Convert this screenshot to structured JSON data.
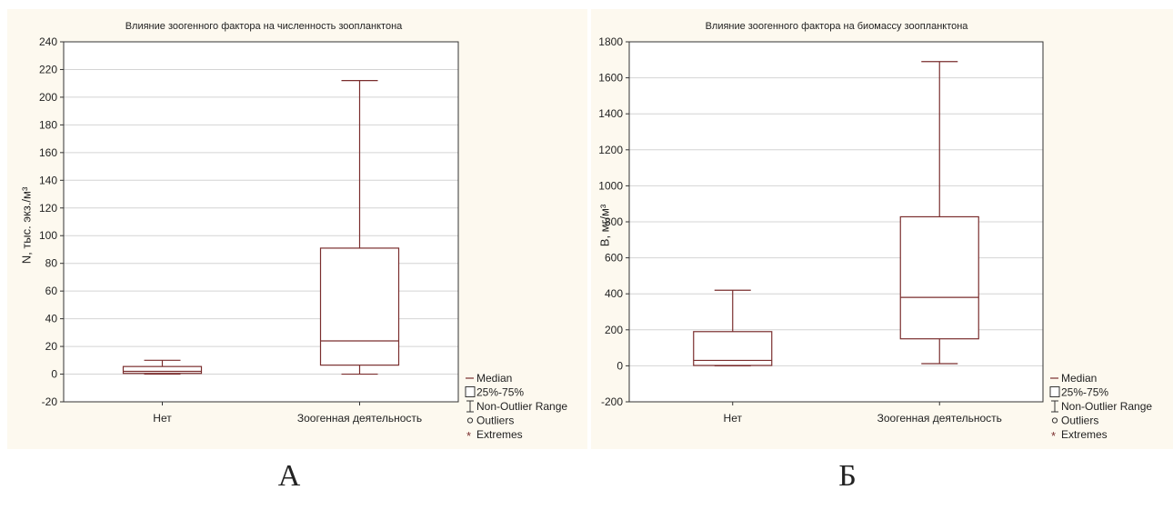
{
  "colors": {
    "box": "#7a2e2e",
    "panel_bg": "#fdf9ef",
    "grid": "#d4d4d4",
    "text": "#222222"
  },
  "legend": {
    "median": "Median",
    "box": "25%-75%",
    "range": "Non-Outlier Range",
    "outliers": "Outliers",
    "extremes": "Extremes"
  },
  "figure_labels": {
    "a": "А",
    "b": "Б"
  },
  "chart_data": [
    {
      "type": "boxplot",
      "title": "Влияние зоогенного фактора на численность зоопланктона",
      "xlabel": "",
      "ylabel": "N, тыс. экз./м³",
      "ylim": [
        -20,
        240
      ],
      "yticks": [
        -20,
        0,
        20,
        40,
        60,
        80,
        100,
        120,
        140,
        160,
        180,
        200,
        220,
        240
      ],
      "grid": true,
      "legend_position": "bottom-right outside",
      "categories": [
        "Нет",
        "Зоогенная деятельность"
      ],
      "boxes": [
        {
          "category": "Нет",
          "min": 0,
          "q1": 0.5,
          "median": 2,
          "q3": 5.5,
          "max": 10
        },
        {
          "category": "Зоогенная деятельность",
          "min": 0,
          "q1": 6.5,
          "median": 24,
          "q3": 91,
          "max": 212
        }
      ]
    },
    {
      "type": "boxplot",
      "title": "Влияние зоогенного фактора на биомассу зоопланктона",
      "xlabel": "",
      "ylabel": "B, мг/м³",
      "ylim": [
        -200,
        1800
      ],
      "yticks": [
        -200,
        0,
        200,
        400,
        600,
        800,
        1000,
        1200,
        1400,
        1600,
        1800
      ],
      "grid": true,
      "legend_position": "bottom-right outside",
      "categories": [
        "Нет",
        "Зоогенная деятельность"
      ],
      "boxes": [
        {
          "category": "Нет",
          "min": 0,
          "q1": 2,
          "median": 30,
          "q3": 190,
          "max": 420
        },
        {
          "category": "Зоогенная деятельность",
          "min": 12,
          "q1": 150,
          "median": 380,
          "q3": 828,
          "max": 1690
        }
      ]
    }
  ]
}
